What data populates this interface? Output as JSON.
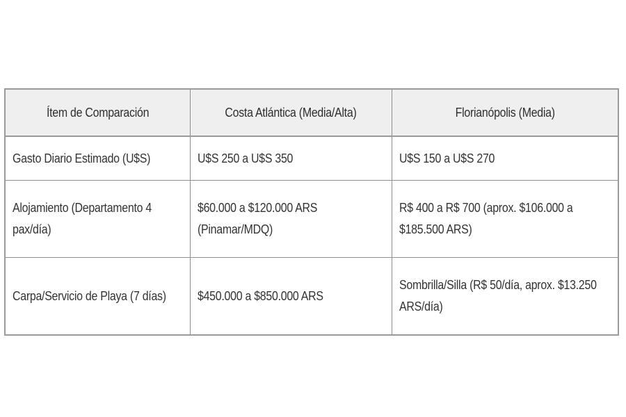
{
  "table": {
    "headers": [
      "Ítem de Comparación",
      "Costa Atlántica (Media/Alta)",
      "Florianópolis (Media)"
    ],
    "rows": [
      {
        "item": "Gasto Diario Estimado (U$S)",
        "costa": "U$S 250 a U$S 350",
        "floripa": "U$S 150 a U$S 270"
      },
      {
        "item": "Alojamiento (Departamento 4 pax/día)",
        "costa": "$60.000 a $120.000 ARS (Pinamar/MDQ)",
        "floripa": "R$ 400 a R$ 700 (aprox. $106.000 a $185.500 ARS)"
      },
      {
        "item": "Carpa/Servicio de Playa (7 días)",
        "costa": "$450.000 a $850.000 ARS",
        "floripa": "Sombrilla/Silla (R$ 50/día, aprox. $13.250 ARS/día)"
      }
    ]
  },
  "colors": {
    "header_bg": "#efefef",
    "border": "#8e8e8e",
    "text": "#333333"
  }
}
